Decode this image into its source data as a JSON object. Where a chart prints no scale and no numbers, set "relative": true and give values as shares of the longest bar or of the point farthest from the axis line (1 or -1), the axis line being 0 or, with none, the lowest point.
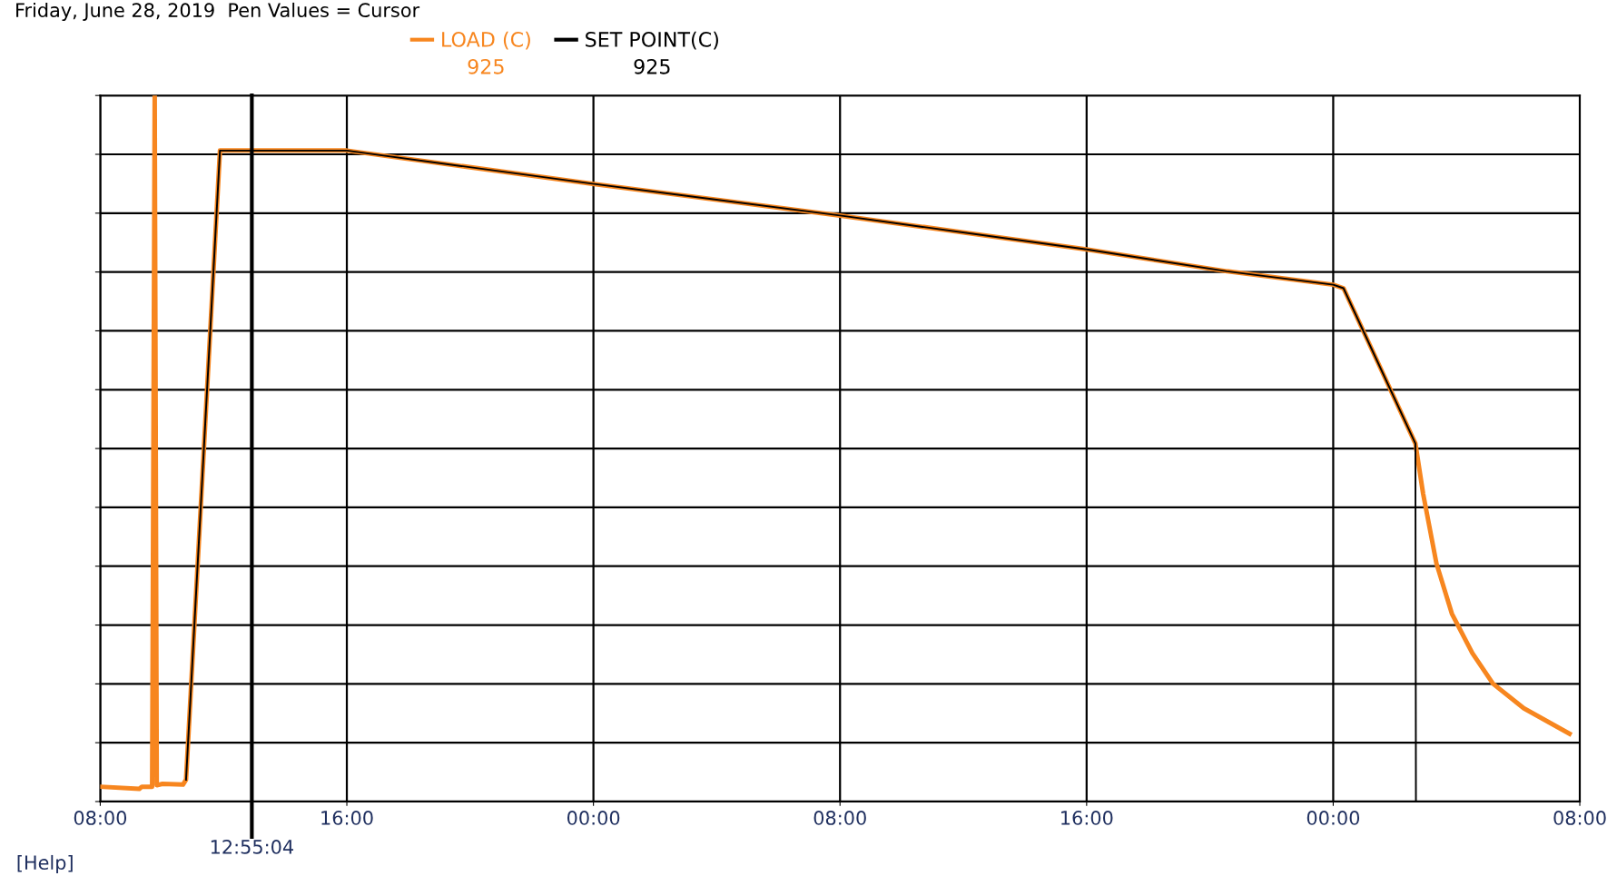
{
  "chart_data": {
    "type": "line",
    "title": "Friday, June 28, 2019  Pen Values = Cursor",
    "relative": true,
    "grid": true,
    "tick_labels": "x",
    "legend": "top",
    "xlim": [
      "2019-06-28T08:00",
      "2019-06-30T08:00"
    ],
    "xticks": [
      {
        "value": "2019-06-28T08:00",
        "label": "08:00"
      },
      {
        "value": "2019-06-28T16:00",
        "label": "16:00"
      },
      {
        "value": "2019-06-29T00:00",
        "label": "00:00"
      },
      {
        "value": "2019-06-29T08:00",
        "label": "08:00"
      },
      {
        "value": "2019-06-29T16:00",
        "label": "16:00"
      },
      {
        "value": "2019-06-30T00:00",
        "label": "00:00"
      },
      {
        "value": "2019-06-30T08:00",
        "label": "08:00"
      }
    ],
    "series": [
      {
        "name": "LOAD (C)",
        "color": "#f7861f",
        "x": [
          "2019-06-28T08:00",
          "2019-06-28T09:16",
          "2019-06-28T09:21",
          "2019-06-28T09:41",
          "2019-06-28T09:46",
          "2019-06-28T09:50",
          "2019-06-28T10:01",
          "2019-06-28T10:41",
          "2019-06-28T10:47",
          "2019-06-28T11:53",
          "2019-06-28T16:00",
          "2019-06-28T23:58",
          "2019-06-29T08:00",
          "2019-06-29T16:00",
          "2019-06-29T20:33",
          "2019-06-30T00:00",
          "2019-06-30T00:20",
          "2019-06-30T02:40",
          "2019-06-30T02:55",
          "2019-06-30T03:21",
          "2019-06-30T03:51",
          "2019-06-30T04:31",
          "2019-06-30T05:11",
          "2019-06-30T06:11",
          "2019-06-30T07:40"
        ],
        "values": [
          0.021,
          0.018,
          0.021,
          0.021,
          1.0,
          0.023,
          0.025,
          0.024,
          0.031,
          0.922,
          0.922,
          0.875,
          0.83,
          0.782,
          0.751,
          0.732,
          0.727,
          0.507,
          0.436,
          0.337,
          0.266,
          0.21,
          0.167,
          0.132,
          0.096
        ]
      },
      {
        "name": "SET POINT(C)",
        "color": "#000000",
        "x": [
          "2019-06-28T10:47",
          "2019-06-28T11:53",
          "2019-06-28T16:00",
          "2019-06-28T23:58",
          "2019-06-29T08:00",
          "2019-06-29T16:00",
          "2019-06-29T20:33",
          "2019-06-30T00:00",
          "2019-06-30T00:20",
          "2019-06-30T02:40",
          "2019-06-30T02:41"
        ],
        "values": [
          0.031,
          0.922,
          0.922,
          0.875,
          0.83,
          0.782,
          0.751,
          0.732,
          0.727,
          0.507,
          0.0
        ]
      }
    ],
    "ref_lines": [
      {
        "axis": "x",
        "value": "2019-06-28T12:55:04",
        "label": "12:55:04",
        "color": "#000000"
      }
    ],
    "annotations": [
      "925",
      "925",
      "[Help]"
    ]
  }
}
